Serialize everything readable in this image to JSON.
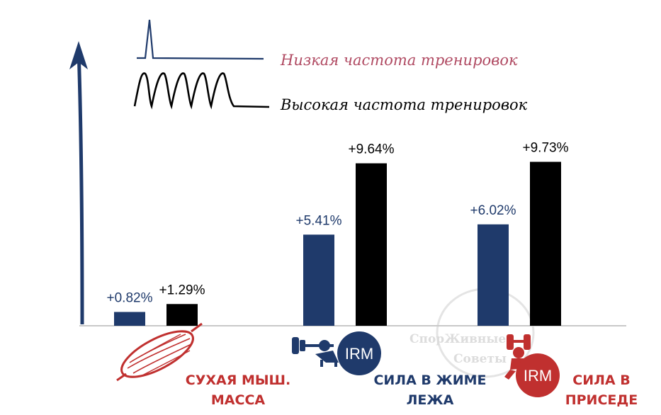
{
  "colors": {
    "low": "#1f3a6b",
    "high": "#000000",
    "low_label": "#b04a62",
    "category_red": "#c0302f",
    "category_blue": "#1f3a6b",
    "axis": "#1f3a6b"
  },
  "legend": {
    "low": "Низкая частота тренировок",
    "high": "Высокая частота тренировок"
  },
  "icons": {
    "muscle": "muscle-icon",
    "bench": "bench-press-icon",
    "squat": "squat-icon",
    "irm_badge": "IRM"
  },
  "watermark": {
    "line1": "СпорЖивные",
    "line2": "Советы"
  },
  "chart_data": {
    "type": "bar",
    "categories": [
      "СУХАЯ МЫШ. МАССА",
      "СИЛА В ЖИМЕ ЛЕЖА",
      "СИЛА В ПРИСЕДЕ"
    ],
    "category_lines": [
      [
        "СУХАЯ МЫШ.",
        "МАССА"
      ],
      [
        "СИЛА В ЖИМЕ",
        "ЛЕЖА"
      ],
      [
        "СИЛА В",
        "ПРИСЕДЕ"
      ]
    ],
    "series": [
      {
        "name": "Низкая частота тренировок",
        "values": [
          0.82,
          5.41,
          6.02
        ],
        "labels": [
          "+0.82%",
          "+5.41%",
          "+6.02%"
        ]
      },
      {
        "name": "Высокая частота тренировок",
        "values": [
          1.29,
          9.64,
          9.73
        ],
        "labels": [
          "+1.29%",
          "+9.64%",
          "+9.73%"
        ]
      }
    ],
    "ylim": [
      0,
      14.5
    ],
    "grid": false,
    "legend_position": "top-left",
    "title": "",
    "xlabel": "",
    "ylabel": ""
  }
}
